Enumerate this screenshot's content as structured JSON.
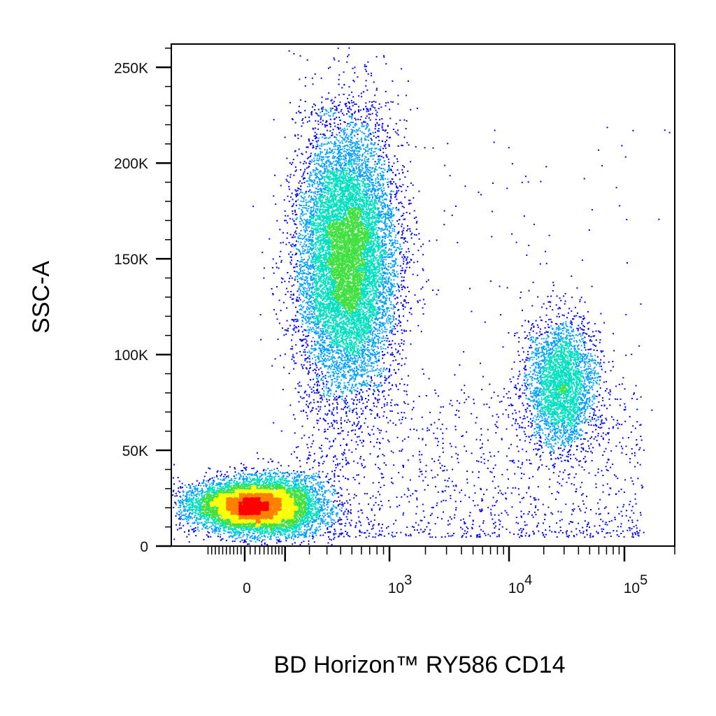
{
  "chart_data": {
    "type": "scatter",
    "subtype": "flow-cytometry-density-dot-plot",
    "xlabel": "BD Horizon™ RY586  CD14",
    "ylabel": "SSC-A",
    "x_scale": "biexponential",
    "y_scale": "linear",
    "xlim": [
      -200,
      150000
    ],
    "ylim": [
      0,
      262144
    ],
    "x_ticks": [
      {
        "value": 0,
        "label": "0"
      },
      {
        "value": 1000,
        "label": "10",
        "exponent": "3"
      },
      {
        "value": 10000,
        "label": "10",
        "exponent": "4"
      },
      {
        "value": 100000,
        "label": "10",
        "exponent": "5"
      }
    ],
    "y_ticks": [
      {
        "value": 0,
        "label": "0"
      },
      {
        "value": 50000,
        "label": "50K"
      },
      {
        "value": 100000,
        "label": "100K"
      },
      {
        "value": 150000,
        "label": "150K"
      },
      {
        "value": 200000,
        "label": "200K"
      },
      {
        "value": 250000,
        "label": "250K"
      }
    ],
    "grid": false,
    "legend": "none",
    "density_colors": [
      "#0000ff",
      "#00a0ff",
      "#00e0c0",
      "#40e040",
      "#ffff00",
      "#ff8000",
      "#ff0000"
    ],
    "populations": [
      {
        "center_x": 20,
        "center_y": 21000,
        "spread_x_decades": 0.5,
        "spread_y": 9000,
        "peak_density": "high"
      },
      {
        "center_x": 450,
        "center_y": 150000,
        "spread_x_decades": 0.45,
        "spread_y": 45000,
        "peak_density": "medium-high"
      },
      {
        "center_x": 28000,
        "center_y": 85000,
        "spread_x_decades": 0.25,
        "spread_y": 17000,
        "peak_density": "medium"
      }
    ]
  }
}
